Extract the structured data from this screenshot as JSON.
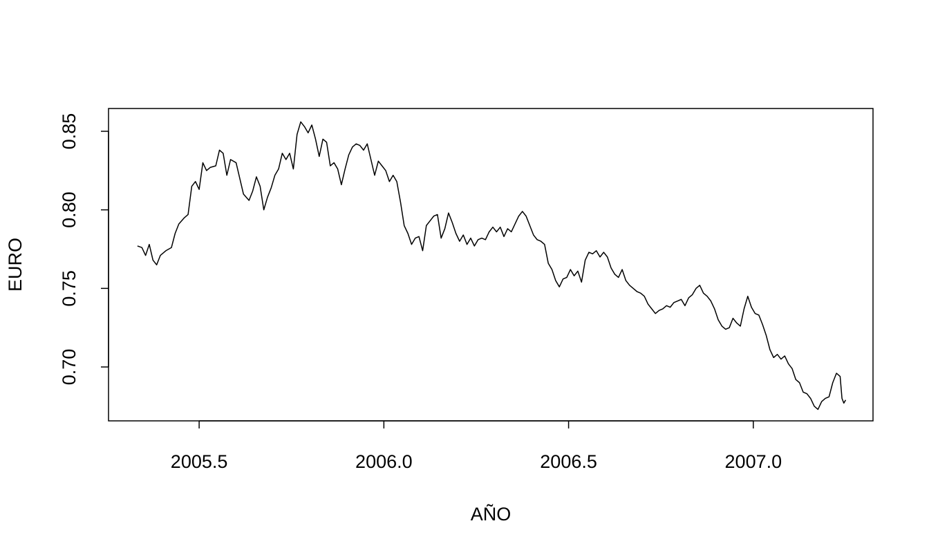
{
  "chart_data": {
    "type": "line",
    "color": "#000000",
    "xlabel": "AÑO",
    "ylabel": "EURO",
    "xlim": [
      2005.2547,
      2007.324
    ],
    "ylim": [
      0.6657,
      0.8645
    ],
    "xticks": [
      2005.5,
      {
        "value": 2006,
        "label": "2006.0"
      },
      2006.5,
      {
        "value": 2007,
        "label": "2007.0"
      }
    ],
    "yticks": [
      {
        "value": 0.7,
        "label": "0.70"
      },
      0.75,
      {
        "value": 0.8,
        "label": "0.80"
      },
      0.85
    ],
    "grid": false,
    "x": [
      2005.333,
      2005.345,
      2005.355,
      2005.365,
      2005.375,
      2005.385,
      2005.395,
      2005.41,
      2005.425,
      2005.435,
      2005.445,
      2005.46,
      2005.47,
      2005.48,
      2005.49,
      2005.5,
      2005.51,
      2005.52,
      2005.53,
      2005.545,
      2005.555,
      2005.565,
      2005.575,
      2005.585,
      2005.6,
      2005.61,
      2005.62,
      2005.635,
      2005.645,
      2005.655,
      2005.665,
      2005.675,
      2005.685,
      2005.695,
      2005.705,
      2005.715,
      2005.725,
      2005.735,
      2005.745,
      2005.755,
      2005.765,
      2005.775,
      2005.785,
      2005.795,
      2005.805,
      2005.815,
      2005.825,
      2005.835,
      2005.845,
      2005.855,
      2005.865,
      2005.875,
      2005.885,
      2005.895,
      2005.905,
      2005.915,
      2005.925,
      2005.935,
      2005.945,
      2005.955,
      2005.965,
      2005.975,
      2005.985,
      2005.995,
      2006.005,
      2006.015,
      2006.025,
      2006.035,
      2006.045,
      2006.055,
      2006.065,
      2006.075,
      2006.085,
      2006.095,
      2006.105,
      2006.115,
      2006.125,
      2006.135,
      2006.145,
      2006.155,
      2006.165,
      2006.175,
      2006.185,
      2006.195,
      2006.205,
      2006.215,
      2006.225,
      2006.235,
      2006.245,
      2006.255,
      2006.265,
      2006.275,
      2006.285,
      2006.295,
      2006.305,
      2006.315,
      2006.325,
      2006.335,
      2006.345,
      2006.355,
      2006.365,
      2006.375,
      2006.385,
      2006.395,
      2006.405,
      2006.415,
      2006.425,
      2006.435,
      2006.445,
      2006.455,
      2006.465,
      2006.475,
      2006.485,
      2006.495,
      2006.505,
      2006.515,
      2006.525,
      2006.535,
      2006.545,
      2006.555,
      2006.565,
      2006.575,
      2006.585,
      2006.595,
      2006.605,
      2006.615,
      2006.625,
      2006.635,
      2006.645,
      2006.655,
      2006.665,
      2006.675,
      2006.685,
      2006.695,
      2006.705,
      2006.715,
      2006.725,
      2006.735,
      2006.745,
      2006.755,
      2006.765,
      2006.775,
      2006.785,
      2006.795,
      2006.805,
      2006.815,
      2006.825,
      2006.835,
      2006.845,
      2006.855,
      2006.865,
      2006.875,
      2006.885,
      2006.895,
      2006.905,
      2006.915,
      2006.925,
      2006.935,
      2006.945,
      2006.955,
      2006.965,
      2006.975,
      2006.985,
      2006.995,
      2007.005,
      2007.015,
      2007.025,
      2007.035,
      2007.045,
      2007.055,
      2007.065,
      2007.075,
      2007.085,
      2007.095,
      2007.105,
      2007.115,
      2007.125,
      2007.135,
      2007.145,
      2007.155,
      2007.165,
      2007.175,
      2007.185,
      2007.195,
      2007.205,
      2007.215,
      2007.225,
      2007.235,
      2007.24,
      2007.245,
      2007.25
    ],
    "values": [
      0.777,
      0.776,
      0.771,
      0.778,
      0.768,
      0.765,
      0.771,
      0.774,
      0.776,
      0.785,
      0.791,
      0.795,
      0.797,
      0.815,
      0.818,
      0.813,
      0.83,
      0.825,
      0.827,
      0.828,
      0.838,
      0.836,
      0.822,
      0.832,
      0.83,
      0.82,
      0.81,
      0.806,
      0.812,
      0.821,
      0.815,
      0.8,
      0.808,
      0.814,
      0.822,
      0.826,
      0.836,
      0.832,
      0.836,
      0.826,
      0.848,
      0.856,
      0.853,
      0.849,
      0.854,
      0.845,
      0.834,
      0.845,
      0.843,
      0.828,
      0.83,
      0.826,
      0.816,
      0.826,
      0.835,
      0.84,
      0.842,
      0.841,
      0.838,
      0.842,
      0.832,
      0.822,
      0.831,
      0.828,
      0.825,
      0.818,
      0.822,
      0.818,
      0.805,
      0.79,
      0.785,
      0.778,
      0.782,
      0.783,
      0.774,
      0.79,
      0.793,
      0.796,
      0.797,
      0.782,
      0.788,
      0.798,
      0.792,
      0.785,
      0.78,
      0.784,
      0.778,
      0.782,
      0.777,
      0.781,
      0.782,
      0.781,
      0.786,
      0.789,
      0.786,
      0.789,
      0.783,
      0.788,
      0.786,
      0.791,
      0.796,
      0.799,
      0.796,
      0.79,
      0.784,
      0.781,
      0.78,
      0.778,
      0.766,
      0.762,
      0.755,
      0.751,
      0.756,
      0.757,
      0.762,
      0.758,
      0.761,
      0.754,
      0.768,
      0.773,
      0.772,
      0.774,
      0.77,
      0.773,
      0.77,
      0.763,
      0.759,
      0.757,
      0.762,
      0.755,
      0.752,
      0.75,
      0.748,
      0.747,
      0.745,
      0.74,
      0.737,
      0.734,
      0.736,
      0.737,
      0.739,
      0.738,
      0.741,
      0.742,
      0.743,
      0.739,
      0.744,
      0.746,
      0.75,
      0.752,
      0.747,
      0.745,
      0.742,
      0.737,
      0.73,
      0.726,
      0.724,
      0.725,
      0.731,
      0.728,
      0.726,
      0.737,
      0.745,
      0.738,
      0.734,
      0.733,
      0.727,
      0.72,
      0.711,
      0.706,
      0.708,
      0.705,
      0.707,
      0.702,
      0.699,
      0.692,
      0.69,
      0.684,
      0.683,
      0.68,
      0.675,
      0.673,
      0.678,
      0.68,
      0.681,
      0.69,
      0.696,
      0.694,
      0.68,
      0.677,
      0.679
    ]
  }
}
